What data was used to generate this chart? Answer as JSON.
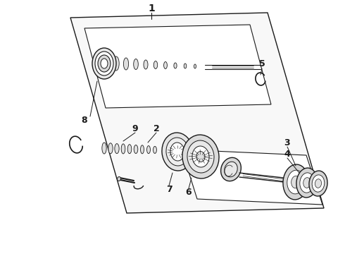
{
  "background_color": "#ffffff",
  "line_color": "#1a1a1a",
  "lw": 1.0,
  "fig_width": 4.9,
  "fig_height": 3.6,
  "dpi": 100
}
